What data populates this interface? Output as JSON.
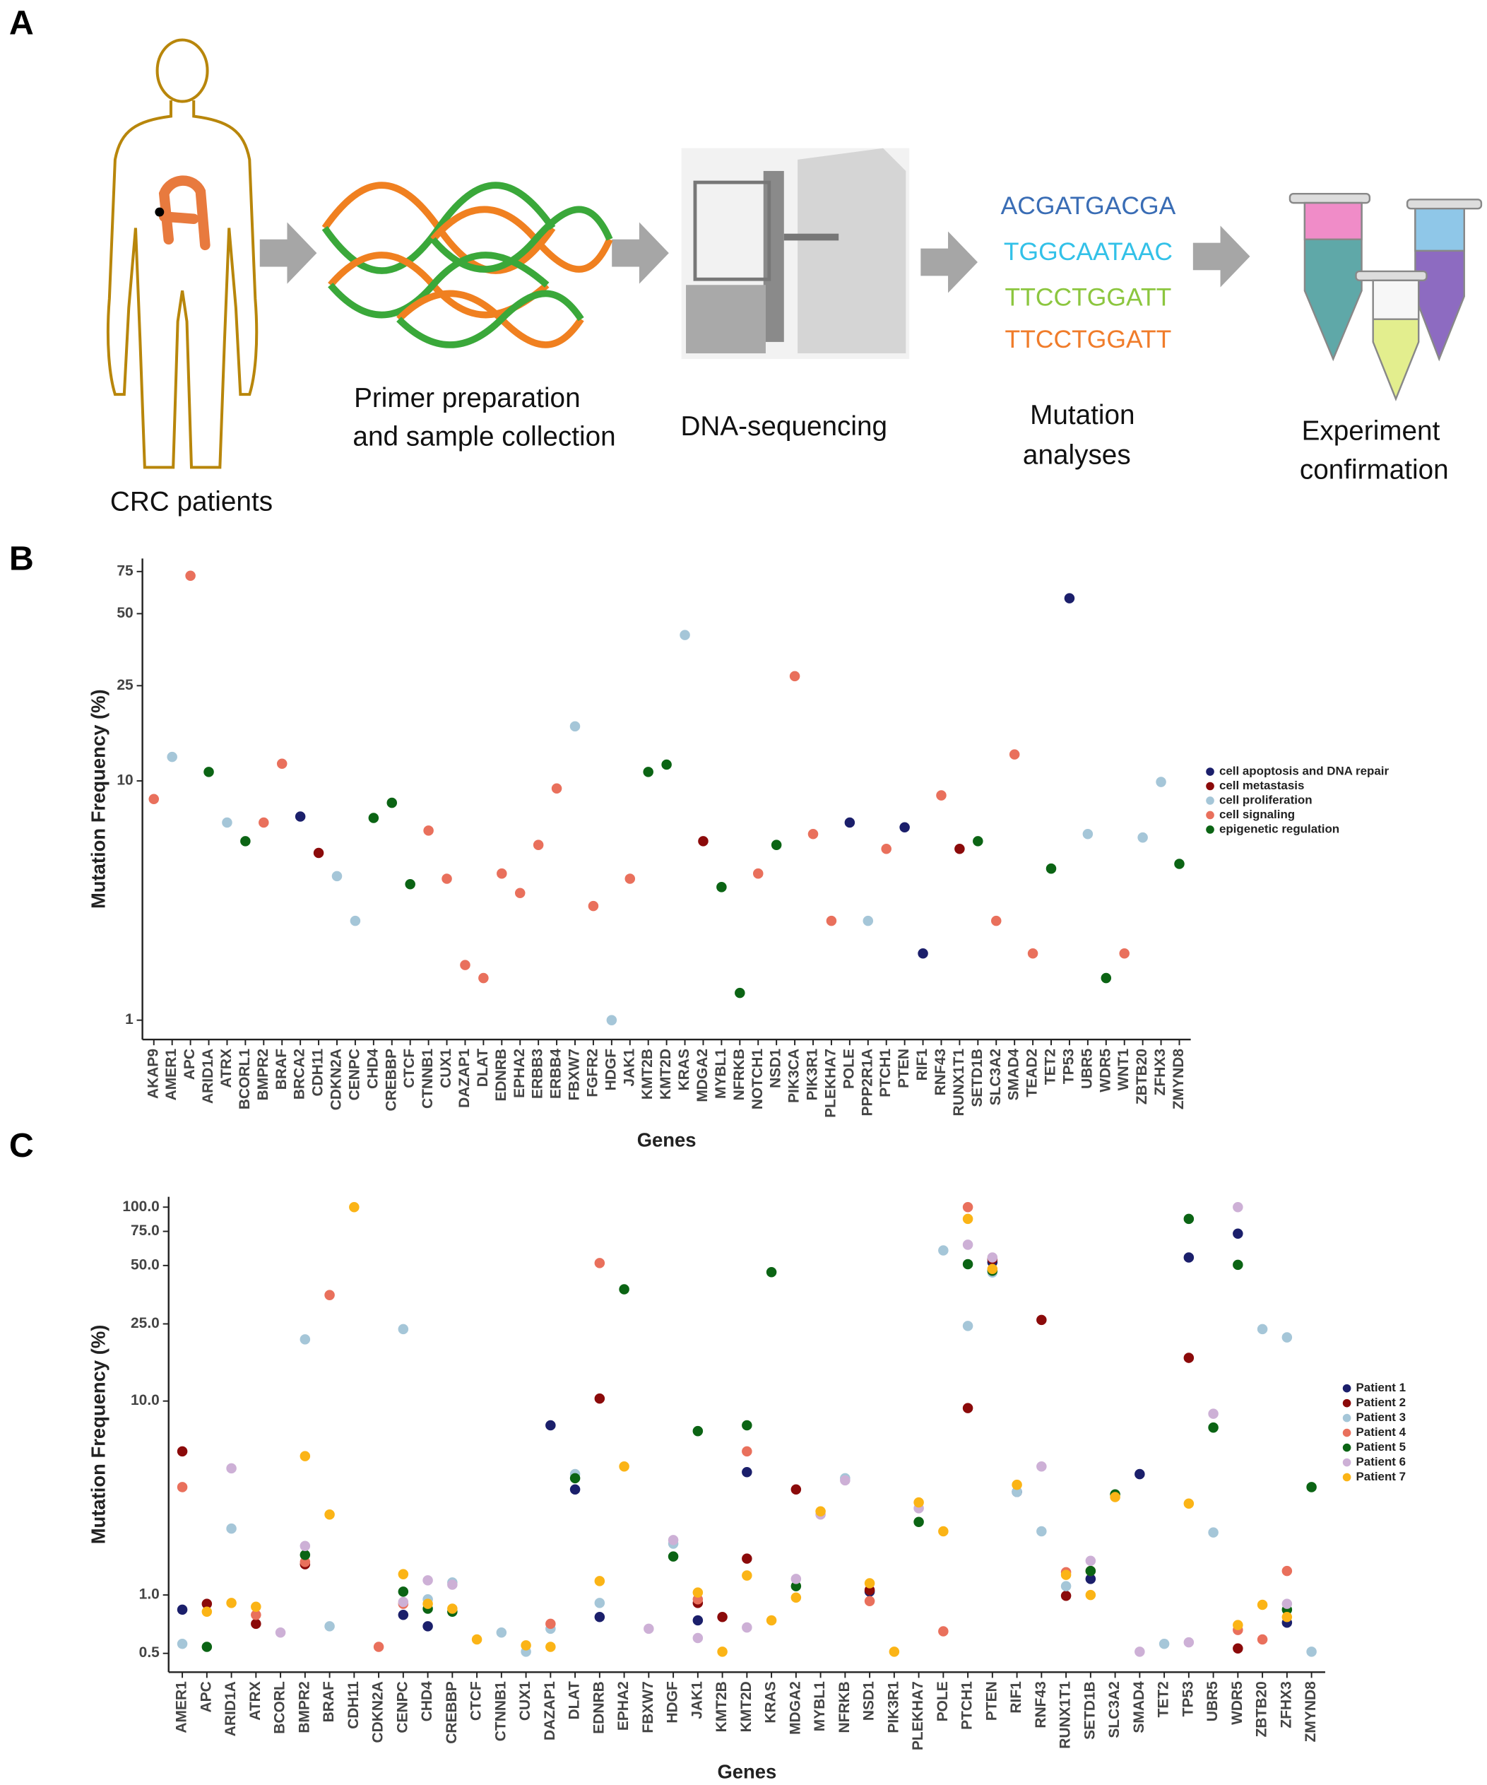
{
  "panel_a": {
    "label": "A",
    "patients": "CRC patients",
    "steps": [
      [
        "Primer preparation",
        "and sample collection"
      ],
      [
        "DNA-sequencing"
      ],
      [
        "Mutation",
        "analyses"
      ],
      [
        "Experiment",
        "confirmation"
      ]
    ],
    "sequences": [
      "ACGATGACGA",
      "TGGCAATAAC",
      "TTCCTGGATT",
      "TTCCTGGATT"
    ]
  },
  "chart_data": [
    {
      "type": "scatter",
      "label": "B",
      "x_label": "Genes",
      "y_label": "Mutation Frequency (%)",
      "log_scale": true,
      "grid": false,
      "legend": "right",
      "categories": [
        "AKAP9",
        "AMER1",
        "APC",
        "ARID1A",
        "ATRX",
        "BCORL1",
        "BMPR2",
        "BRAF",
        "BRCA2",
        "CDH11",
        "CDKN2A",
        "CENPC",
        "CHD4",
        "CREBBP",
        "CTCF",
        "CTNNB1",
        "CUX1",
        "DAZAP1",
        "DLAT",
        "EDNRB",
        "EPHA2",
        "ERBB3",
        "ERBB4",
        "FBXW7",
        "FGFR2",
        "HDGF",
        "JAK1",
        "KMT2B",
        "KMT2D",
        "KRAS",
        "MDGA2",
        "MYBL1",
        "NFRKB",
        "NOTCH1",
        "NSD1",
        "PIK3CA",
        "PIK3R1",
        "PLEKHA7",
        "POLE",
        "PPP2R1A",
        "PTCH1",
        "PTEN",
        "RIF1",
        "RNF43",
        "RUNX1T1",
        "SETD1B",
        "SLC3A2",
        "SMAD4",
        "TEAD2",
        "TET2",
        "TP53",
        "UBR5",
        "WDR5",
        "WNT1",
        "ZBTB20",
        "ZFHX3",
        "ZMYND8"
      ],
      "ylim": [
        0.83,
        85
      ],
      "yticks": [
        1,
        10,
        25,
        50,
        75
      ],
      "series": [
        {
          "name": "cell apoptosis and DNA repair",
          "color": "#1b1f6b",
          "values": [
            null,
            null,
            null,
            null,
            null,
            null,
            null,
            null,
            7.1,
            null,
            null,
            null,
            null,
            null,
            null,
            null,
            null,
            null,
            null,
            null,
            null,
            null,
            null,
            null,
            null,
            null,
            null,
            null,
            null,
            null,
            null,
            null,
            null,
            null,
            null,
            null,
            null,
            null,
            6.7,
            null,
            null,
            6.4,
            1.9,
            null,
            null,
            null,
            null,
            null,
            null,
            null,
            58,
            null,
            null,
            null,
            null,
            null,
            null
          ]
        },
        {
          "name": "cell metastasis",
          "color": "#8b0a0a",
          "values": [
            null,
            null,
            null,
            null,
            null,
            null,
            null,
            null,
            null,
            5.0,
            null,
            null,
            null,
            null,
            null,
            null,
            null,
            null,
            null,
            null,
            null,
            null,
            null,
            null,
            null,
            null,
            null,
            null,
            null,
            null,
            5.6,
            null,
            null,
            null,
            null,
            null,
            null,
            null,
            null,
            null,
            null,
            null,
            null,
            null,
            5.2,
            null,
            null,
            null,
            null,
            null,
            null,
            null,
            null,
            null,
            null,
            null,
            null
          ]
        },
        {
          "name": "cell proliferation",
          "color": "#a5c6d8",
          "values": [
            null,
            12.6,
            null,
            null,
            6.7,
            null,
            null,
            null,
            null,
            null,
            4.0,
            2.6,
            null,
            null,
            null,
            null,
            null,
            null,
            null,
            null,
            null,
            null,
            null,
            16.9,
            null,
            1.0,
            null,
            null,
            null,
            40.7,
            null,
            null,
            null,
            null,
            null,
            null,
            null,
            null,
            null,
            2.6,
            null,
            null,
            null,
            null,
            null,
            null,
            null,
            null,
            null,
            null,
            null,
            6.0,
            null,
            null,
            5.8,
            9.9,
            null
          ]
        },
        {
          "name": "cell signaling",
          "color": "#e9705c",
          "values": [
            8.4,
            null,
            72,
            null,
            null,
            null,
            6.7,
            11.8,
            null,
            null,
            null,
            null,
            null,
            null,
            null,
            6.2,
            3.9,
            1.7,
            1.5,
            4.1,
            3.4,
            5.4,
            9.3,
            null,
            3.0,
            null,
            3.9,
            null,
            null,
            null,
            null,
            null,
            null,
            4.1,
            null,
            27.4,
            6.0,
            2.6,
            null,
            null,
            5.2,
            null,
            null,
            8.7,
            null,
            null,
            2.6,
            12.9,
            1.9,
            null,
            null,
            null,
            null,
            1.9,
            null,
            null,
            null
          ]
        },
        {
          "name": "epigenetic regulation",
          "color": "#0b6414",
          "values": [
            null,
            null,
            null,
            10.9,
            null,
            5.6,
            null,
            null,
            null,
            null,
            null,
            null,
            7.0,
            8.1,
            3.7,
            null,
            null,
            null,
            null,
            null,
            null,
            null,
            null,
            null,
            null,
            null,
            null,
            10.9,
            11.7,
            null,
            null,
            3.6,
            1.3,
            null,
            5.4,
            null,
            null,
            null,
            null,
            null,
            null,
            null,
            null,
            null,
            null,
            5.6,
            null,
            null,
            null,
            4.3,
            null,
            null,
            1.5,
            null,
            null,
            null,
            4.5
          ]
        }
      ]
    },
    {
      "type": "scatter",
      "label": "C",
      "x_label": "Genes",
      "y_label": "Mutation Frequency (%)",
      "log_scale": true,
      "grid": false,
      "legend": "right",
      "categories": [
        "AMER1",
        "APC",
        "ARID1A",
        "ATRX",
        "BCORL",
        "BMPR2",
        "BRAF",
        "CDH11",
        "CDKN2A",
        "CENPC",
        "CHD4",
        "CREBBP",
        "CTCF",
        "CTNNB1",
        "CUX1",
        "DAZAP1",
        "DLAT",
        "EDNRB",
        "EPHA2",
        "FBXW7",
        "HDGF",
        "JAK1",
        "KMT2B",
        "KMT2D",
        "KRAS",
        "MDGA2",
        "MYBL1",
        "NFRKB",
        "NSD1",
        "PIK3R1",
        "PLEKHA7",
        "POLE",
        "PTCH1",
        "PTEN",
        "RIF1",
        "RNF43",
        "RUNX1T1",
        "SETD1B",
        "SLC3A2",
        "SMAD4",
        "TET2",
        "TP53",
        "UBR5",
        "WDR5",
        "ZBTB20",
        "ZFHX3",
        "ZMYND8"
      ],
      "ylim": [
        0.4,
        113
      ],
      "yticks": [
        0.5,
        {
          "value": 1,
          "label": "1.0"
        },
        {
          "value": 10,
          "label": "10.0"
        },
        {
          "value": 25,
          "label": "25.0"
        },
        {
          "value": 50,
          "label": "50.0"
        },
        {
          "value": 75,
          "label": "75.0"
        },
        {
          "value": 100,
          "label": "100.0"
        }
      ],
      "series": [
        {
          "name": "Patient 1",
          "color": "#1b1f6b",
          "values": [
            0.84,
            null,
            null,
            null,
            null,
            null,
            null,
            null,
            null,
            0.79,
            0.69,
            null,
            null,
            null,
            null,
            7.5,
            3.5,
            0.77,
            null,
            null,
            null,
            0.74,
            null,
            4.3,
            null,
            null,
            null,
            null,
            1.04,
            null,
            null,
            null,
            null,
            52,
            3.4,
            null,
            null,
            1.21,
            null,
            4.2,
            null,
            55,
            null,
            73,
            null,
            0.72,
            null
          ]
        },
        {
          "name": "Patient 2",
          "color": "#8b0a0a",
          "values": [
            5.5,
            0.9,
            null,
            0.71,
            null,
            1.44,
            null,
            null,
            null,
            null,
            null,
            null,
            null,
            null,
            null,
            null,
            null,
            10.3,
            null,
            null,
            null,
            0.91,
            0.77,
            1.54,
            null,
            3.5,
            null,
            null,
            1.06,
            null,
            null,
            null,
            9.2,
            54,
            null,
            26.2,
            0.99,
            null,
            null,
            null,
            null,
            16.7,
            null,
            0.53,
            null,
            null,
            null
          ]
        },
        {
          "name": "Patient 3",
          "color": "#a5c6d8",
          "values": [
            0.56,
            null,
            2.2,
            null,
            null,
            20.8,
            0.69,
            null,
            null,
            23.5,
            0.95,
            1.16,
            null,
            0.64,
            0.51,
            0.67,
            4.2,
            0.91,
            null,
            null,
            1.84,
            null,
            null,
            null,
            null,
            null,
            null,
            4.0,
            null,
            null,
            null,
            59.8,
            24.4,
            46,
            3.4,
            2.13,
            1.11,
            null,
            null,
            null,
            0.56,
            null,
            2.1,
            null,
            23.5,
            21.3,
            0.51
          ]
        },
        {
          "name": "Patient 4",
          "color": "#e9705c",
          "values": [
            3.6,
            null,
            null,
            0.79,
            null,
            1.48,
            35.2,
            null,
            0.54,
            0.9,
            null,
            null,
            null,
            null,
            null,
            0.71,
            null,
            51.5,
            null,
            null,
            null,
            0.95,
            null,
            5.5,
            null,
            null,
            null,
            null,
            0.93,
            null,
            null,
            0.65,
            100,
            null,
            null,
            null,
            1.31,
            1.33,
            null,
            null,
            null,
            null,
            null,
            0.66,
            0.59,
            1.33,
            null
          ]
        },
        {
          "name": "Patient 5",
          "color": "#0b6414",
          "values": [
            null,
            0.54,
            null,
            null,
            null,
            1.61,
            null,
            null,
            null,
            1.04,
            0.85,
            0.82,
            null,
            null,
            null,
            null,
            4.0,
            null,
            37.7,
            null,
            1.58,
            7.0,
            null,
            7.5,
            46.2,
            1.11,
            null,
            null,
            null,
            null,
            2.38,
            null,
            50.8,
            47,
            null,
            null,
            null,
            1.33,
            3.3,
            null,
            null,
            87,
            7.3,
            50.4,
            null,
            0.84,
            3.6
          ]
        },
        {
          "name": "Patient 6",
          "color": "#cdb0d6",
          "values": [
            null,
            null,
            4.5,
            null,
            0.64,
            1.79,
            null,
            null,
            null,
            0.92,
            1.19,
            1.13,
            null,
            null,
            null,
            null,
            null,
            null,
            null,
            0.67,
            1.92,
            0.6,
            null,
            0.68,
            null,
            1.21,
            2.6,
            3.9,
            null,
            null,
            2.8,
            null,
            64,
            55,
            null,
            4.6,
            null,
            1.5,
            null,
            0.51,
            null,
            0.57,
            8.6,
            100,
            null,
            0.9,
            null
          ]
        },
        {
          "name": "Patient 7",
          "color": "#fbb416",
          "values": [
            null,
            0.82,
            0.91,
            0.87,
            null,
            5.2,
            2.6,
            100,
            null,
            1.28,
            0.9,
            0.85,
            0.59,
            null,
            0.55,
            0.54,
            null,
            1.18,
            4.6,
            null,
            null,
            1.03,
            0.51,
            1.26,
            0.74,
            0.97,
            2.7,
            null,
            1.15,
            0.51,
            3.0,
            2.13,
            87,
            48,
            3.7,
            null,
            1.27,
            1.0,
            3.2,
            null,
            null,
            2.96,
            null,
            0.7,
            0.89,
            0.77,
            null
          ]
        }
      ]
    }
  ]
}
